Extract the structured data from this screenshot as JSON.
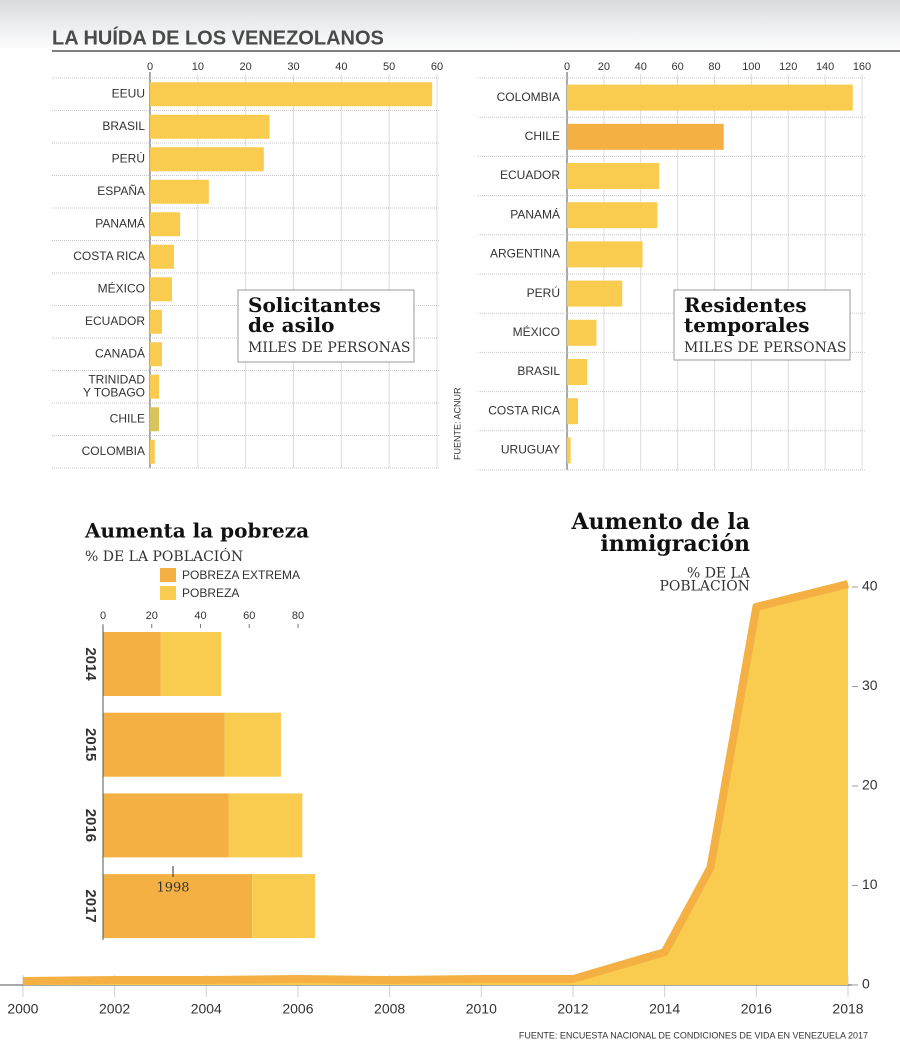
{
  "title": "LA HUÍDA DE LOS VENEZOLANOS",
  "source_top": "FUENTE: ACNUR",
  "source_bottom": "FUENTE: ENCUESTA NACIONAL DE CONDICIONES DE VIDA EN VENEZUELA 2017",
  "annotation": "1998",
  "chart_data": [
    {
      "type": "hbar",
      "title": "Solicitantes\nde asilo",
      "subtitle": "MILES DE PERSONAS",
      "categories": [
        "EEUU",
        "BRASIL",
        "PERÚ",
        "ESPAÑA",
        "PANAMÁ",
        "COSTA RICA",
        "MÉXICO",
        "ECUADOR",
        "CANADÁ",
        "TRINIDAD\nY TOBAGO",
        "CHILE",
        "COLOMBIA"
      ],
      "values": [
        59,
        25,
        23.8,
        12.3,
        6.3,
        5,
        4.6,
        2.5,
        2.5,
        1.9,
        1.9,
        1
      ],
      "colors": [
        "#f9cc50",
        "#f9cc50",
        "#f9cc50",
        "#f9cc50",
        "#f9cc50",
        "#f9cc50",
        "#f9cc50",
        "#f9cc50",
        "#f9cc50",
        "#f9cc50",
        "#d8c35c",
        "#f9cc50"
      ],
      "xlim": [
        0,
        60
      ],
      "xticks": [
        0,
        10,
        20,
        30,
        40,
        50,
        60
      ],
      "grid": true
    },
    {
      "type": "hbar",
      "title": "Residentes\ntemporales",
      "subtitle": "MILES DE PERSONAS",
      "categories": [
        "COLOMBIA",
        "CHILE",
        "ECUADOR",
        "PANAMÁ",
        "ARGENTINA",
        "PERÚ",
        "MÉXICO",
        "BRASIL",
        "COSTA RICA",
        "URUGUAY"
      ],
      "values": [
        155,
        85,
        50,
        49,
        41,
        30,
        16,
        11,
        6,
        2
      ],
      "colors": [
        "#f9cc50",
        "#f4b043",
        "#f9cc50",
        "#f9cc50",
        "#f9cc50",
        "#f9cc50",
        "#f9cc50",
        "#f9cc50",
        "#f9cc50",
        "#f9cc50"
      ],
      "xlim": [
        0,
        160
      ],
      "xticks": [
        0,
        20,
        40,
        60,
        80,
        100,
        120,
        140,
        160
      ],
      "grid": true
    },
    {
      "type": "area",
      "title": "Aumento de la\ninmigración",
      "subtitle": "% DE LA\nPOBLACIÓN",
      "x": [
        2000,
        2002,
        2004,
        2006,
        2008,
        2010,
        2012,
        2014,
        2015,
        2016,
        2018
      ],
      "values": [
        0.4,
        0.5,
        0.5,
        0.6,
        0.5,
        0.6,
        0.6,
        3.3,
        11.8,
        38,
        40.3
      ],
      "fill": "#f9cc50",
      "color": "#f4b043",
      "xlim": [
        1999.5,
        2018
      ],
      "xticks": [
        2000,
        2002,
        2004,
        2006,
        2008,
        2010,
        2012,
        2014,
        2016,
        2018
      ],
      "ylim": [
        0,
        40
      ],
      "yticks": [
        0,
        10,
        20,
        30,
        40
      ]
    },
    {
      "type": "stacked-hbar",
      "title": "Aumenta la pobreza",
      "subtitle": "% DE LA POBLACIÓN",
      "categories": [
        "2014",
        "2015",
        "2016",
        "2017"
      ],
      "series": [
        {
          "name": "POBREZA EXTREMA",
          "color": "#f4b043",
          "values": [
            23.6,
            49.9,
            51.5,
            61.2
          ]
        },
        {
          "name": "POBREZA",
          "color": "#f9cc50",
          "values": [
            24.8,
            23.1,
            30.3,
            25.8
          ]
        }
      ],
      "xlim": [
        0,
        80
      ],
      "xticks": [
        0,
        20,
        40,
        60,
        80
      ]
    }
  ]
}
